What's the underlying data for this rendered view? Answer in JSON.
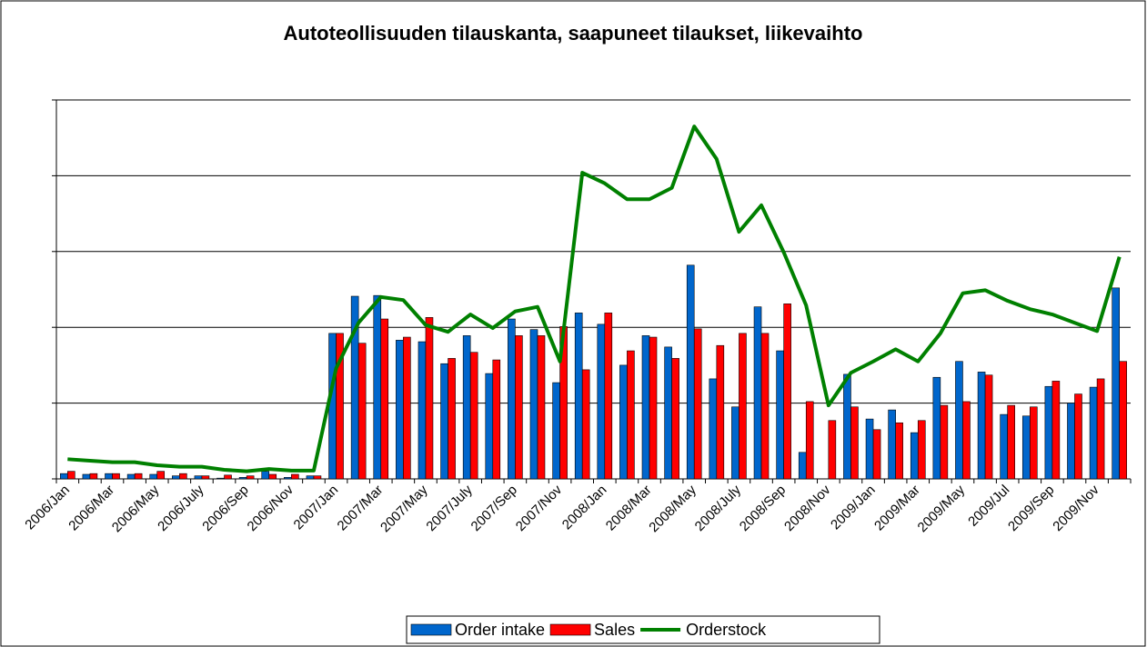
{
  "chart_data": {
    "type": "bar",
    "title": "Autoteollisuuden tilauskanta, saapuneet tilaukset, liikevaihto",
    "categories": [
      "2006/Jan",
      null,
      "2006/Mar",
      null,
      "2006/May",
      null,
      "2006/July",
      null,
      "2006/Sep",
      null,
      "2006/Nov",
      null,
      "2007/Jan",
      null,
      "2007/Mar",
      null,
      "2007/May",
      null,
      "2007/July",
      null,
      "2007/Sep",
      null,
      "2007/Nov",
      null,
      "2008/Jan",
      null,
      "2008/Mar",
      null,
      "2008/May",
      null,
      "2008/July",
      null,
      "2008/Sep",
      null,
      "2008/Nov",
      null,
      "2009/Jan",
      null,
      "2009/Mar",
      null,
      "2009/May",
      null,
      "2009/Jul",
      null,
      "2009/Sep",
      null,
      "2009/Nov",
      null
    ],
    "series": [
      {
        "name": "Order intake",
        "type": "bar",
        "color": "#0066cc",
        "values": [
          0.07,
          0.06,
          0.07,
          0.06,
          0.06,
          0.04,
          0.04,
          0.01,
          0.02,
          0.1,
          0.02,
          0.04,
          1.92,
          2.41,
          2.42,
          1.83,
          1.81,
          1.52,
          1.89,
          1.39,
          2.11,
          1.97,
          1.27,
          2.19,
          2.04,
          1.5,
          1.89,
          1.74,
          2.82,
          1.32,
          0.95,
          2.27,
          1.69,
          0.35,
          0,
          1.38,
          0.79,
          0.91,
          0.61,
          1.34,
          1.55,
          1.41,
          0.85,
          0.83,
          1.22,
          1.0,
          1.21,
          2.52
        ]
      },
      {
        "name": "Sales",
        "type": "bar",
        "color": "#ff0000",
        "values": [
          0.1,
          0.07,
          0.07,
          0.07,
          0.1,
          0.07,
          0.04,
          0.05,
          0.04,
          0.06,
          0.06,
          0.04,
          1.92,
          1.79,
          2.11,
          1.87,
          2.13,
          1.59,
          1.67,
          1.57,
          1.89,
          1.89,
          2.01,
          1.44,
          2.19,
          1.69,
          1.87,
          1.59,
          1.98,
          1.76,
          1.92,
          1.92,
          2.31,
          1.02,
          0.77,
          0.95,
          0.65,
          0.74,
          0.77,
          0.97,
          1.02,
          1.37,
          0.97,
          0.95,
          1.29,
          1.12,
          1.32,
          1.55
        ]
      },
      {
        "name": "Orderstock",
        "type": "line",
        "color": "#008000",
        "values": [
          0.26,
          0.24,
          0.22,
          0.22,
          0.18,
          0.16,
          0.16,
          0.12,
          0.1,
          0.13,
          0.11,
          0.11,
          1.46,
          2.06,
          2.4,
          2.36,
          2.03,
          1.94,
          2.17,
          1.99,
          2.21,
          2.27,
          1.55,
          4.04,
          3.9,
          3.69,
          3.69,
          3.84,
          4.65,
          4.22,
          3.26,
          3.61,
          2.99,
          2.29,
          0.97,
          1.4,
          1.55,
          1.71,
          1.55,
          1.92,
          2.45,
          2.49,
          2.35,
          2.24,
          2.17,
          2.06,
          1.95,
          2.93
        ]
      }
    ],
    "ylim": [
      0,
      5
    ],
    "yticks": [
      0,
      1,
      2,
      3,
      4,
      5
    ],
    "grid": true,
    "legend": "bottom"
  }
}
